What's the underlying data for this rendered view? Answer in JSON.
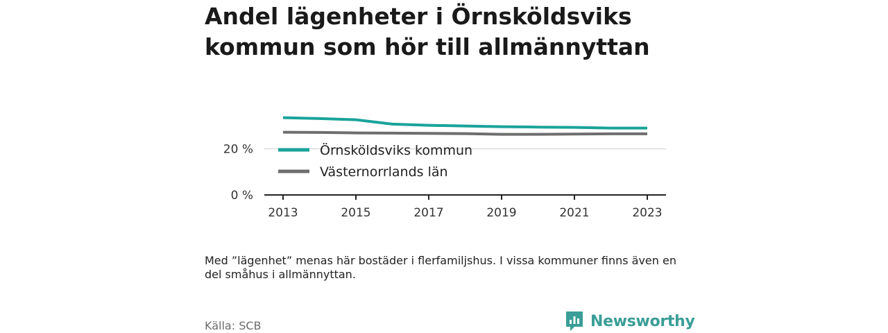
{
  "title": "Andel lägenheter i Örnsköldsviks kommun som hör till allmännyttan",
  "note": "Med ”lägenhet” menas här bostäder i flerfamiljshus. I vissa kommuner finns även en del småhus i allmännyttan.",
  "source": "Källa: SCB",
  "brand": {
    "name": "Newsworthy",
    "icon": "newsworthy-logo-icon",
    "color": "#3a9e97"
  },
  "chart_data": {
    "type": "line",
    "x": [
      2013,
      2014,
      2015,
      2016,
      2017,
      2018,
      2019,
      2020,
      2021,
      2022,
      2023
    ],
    "series": [
      {
        "name": "Örnsköldsviks kommun",
        "color": "#1aa39a",
        "values": [
          33.5,
          33.1,
          32.6,
          30.7,
          30.2,
          29.9,
          29.6,
          29.4,
          29.3,
          29.0,
          29.0
        ]
      },
      {
        "name": "Västernorrlands län",
        "color": "#6e6e6e",
        "values": [
          27.2,
          27.1,
          26.9,
          26.8,
          26.7,
          26.6,
          26.3,
          26.3,
          26.4,
          26.5,
          26.5
        ]
      }
    ],
    "xticks": [
      2013,
      2015,
      2017,
      2019,
      2021,
      2023
    ],
    "xtick_labels": [
      "2013",
      "2015",
      "2017",
      "2019",
      "2021",
      "2023"
    ],
    "yticks": [
      0,
      20
    ],
    "ytick_labels": [
      "0 %",
      "20 %"
    ],
    "ylim": [
      0,
      40
    ],
    "xlim": [
      2013,
      2023
    ],
    "grid": true,
    "legend_position": "inside-left"
  }
}
